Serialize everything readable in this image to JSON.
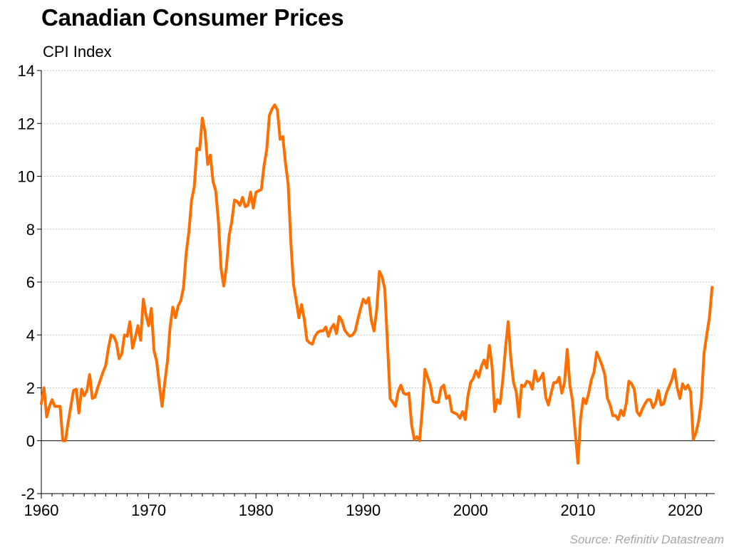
{
  "chart_data": {
    "type": "line",
    "title": "Canadian Consumer Prices",
    "subtitle": "CPI Index",
    "source": "Source: Refinitiv Datastream",
    "xlim": [
      1960,
      2022.75
    ],
    "ylim": [
      -2,
      14
    ],
    "yticks": [
      14,
      12,
      10,
      8,
      6,
      4,
      2,
      0,
      -2
    ],
    "xticks": [
      1960,
      1970,
      1980,
      1990,
      2000,
      2010,
      2020
    ],
    "grid": true,
    "series": [
      {
        "color": "#ff6f00",
        "points": [
          [
            1960.0,
            1.4
          ],
          [
            1960.25,
            2.0
          ],
          [
            1960.5,
            0.9
          ],
          [
            1960.75,
            1.3
          ],
          [
            1961.0,
            1.55
          ],
          [
            1961.25,
            1.3
          ],
          [
            1961.5,
            1.3
          ],
          [
            1961.75,
            1.3
          ],
          [
            1962.0,
            0.0
          ],
          [
            1962.25,
            0.0
          ],
          [
            1962.5,
            0.7
          ],
          [
            1962.75,
            1.3
          ],
          [
            1963.0,
            1.9
          ],
          [
            1963.25,
            1.95
          ],
          [
            1963.5,
            1.05
          ],
          [
            1963.75,
            1.95
          ],
          [
            1964.0,
            1.7
          ],
          [
            1964.25,
            1.9
          ],
          [
            1964.5,
            2.5
          ],
          [
            1964.75,
            1.6
          ],
          [
            1965.0,
            1.65
          ],
          [
            1965.25,
            2.0
          ],
          [
            1965.5,
            2.3
          ],
          [
            1965.75,
            2.6
          ],
          [
            1966.0,
            2.85
          ],
          [
            1966.25,
            3.5
          ],
          [
            1966.5,
            4.0
          ],
          [
            1966.75,
            3.95
          ],
          [
            1967.0,
            3.7
          ],
          [
            1967.25,
            3.1
          ],
          [
            1967.5,
            3.3
          ],
          [
            1967.75,
            4.0
          ],
          [
            1968.0,
            3.95
          ],
          [
            1968.25,
            4.5
          ],
          [
            1968.5,
            3.5
          ],
          [
            1968.75,
            3.9
          ],
          [
            1969.0,
            4.35
          ],
          [
            1969.25,
            3.8
          ],
          [
            1969.5,
            5.35
          ],
          [
            1969.75,
            4.75
          ],
          [
            1970.0,
            4.35
          ],
          [
            1970.25,
            5.0
          ],
          [
            1970.5,
            3.4
          ],
          [
            1970.75,
            3.0
          ],
          [
            1971.0,
            2.1
          ],
          [
            1971.25,
            1.3
          ],
          [
            1971.5,
            2.2
          ],
          [
            1971.75,
            3.0
          ],
          [
            1972.0,
            4.3
          ],
          [
            1972.25,
            5.05
          ],
          [
            1972.5,
            4.65
          ],
          [
            1972.75,
            5.1
          ],
          [
            1973.0,
            5.3
          ],
          [
            1973.25,
            5.8
          ],
          [
            1973.5,
            7.1
          ],
          [
            1973.75,
            7.9
          ],
          [
            1974.0,
            9.1
          ],
          [
            1974.25,
            9.6
          ],
          [
            1974.5,
            11.05
          ],
          [
            1974.75,
            11.0
          ],
          [
            1975.0,
            12.2
          ],
          [
            1975.25,
            11.7
          ],
          [
            1975.5,
            10.45
          ],
          [
            1975.75,
            10.8
          ],
          [
            1976.0,
            9.8
          ],
          [
            1976.25,
            9.45
          ],
          [
            1976.5,
            8.3
          ],
          [
            1976.75,
            6.5
          ],
          [
            1977.0,
            5.85
          ],
          [
            1977.25,
            6.6
          ],
          [
            1977.5,
            7.75
          ],
          [
            1977.75,
            8.3
          ],
          [
            1978.0,
            9.1
          ],
          [
            1978.25,
            9.05
          ],
          [
            1978.5,
            8.9
          ],
          [
            1978.75,
            9.2
          ],
          [
            1979.0,
            8.85
          ],
          [
            1979.25,
            8.9
          ],
          [
            1979.5,
            9.4
          ],
          [
            1979.75,
            8.8
          ],
          [
            1980.0,
            9.4
          ],
          [
            1980.25,
            9.45
          ],
          [
            1980.5,
            9.5
          ],
          [
            1980.75,
            10.4
          ],
          [
            1981.0,
            11.0
          ],
          [
            1981.25,
            12.3
          ],
          [
            1981.5,
            12.55
          ],
          [
            1981.75,
            12.7
          ],
          [
            1982.0,
            12.5
          ],
          [
            1982.25,
            11.4
          ],
          [
            1982.5,
            11.5
          ],
          [
            1982.75,
            10.5
          ],
          [
            1983.0,
            9.7
          ],
          [
            1983.25,
            7.5
          ],
          [
            1983.5,
            5.9
          ],
          [
            1983.75,
            5.3
          ],
          [
            1984.0,
            4.65
          ],
          [
            1984.25,
            5.15
          ],
          [
            1984.5,
            4.6
          ],
          [
            1984.75,
            3.8
          ],
          [
            1985.0,
            3.7
          ],
          [
            1985.25,
            3.65
          ],
          [
            1985.5,
            3.95
          ],
          [
            1985.75,
            4.1
          ],
          [
            1986.0,
            4.15
          ],
          [
            1986.25,
            4.15
          ],
          [
            1986.5,
            4.3
          ],
          [
            1986.75,
            3.95
          ],
          [
            1987.0,
            4.25
          ],
          [
            1987.25,
            4.4
          ],
          [
            1987.5,
            4.05
          ],
          [
            1987.75,
            4.7
          ],
          [
            1988.0,
            4.55
          ],
          [
            1988.25,
            4.2
          ],
          [
            1988.5,
            4.05
          ],
          [
            1988.75,
            3.95
          ],
          [
            1989.0,
            4.0
          ],
          [
            1989.25,
            4.15
          ],
          [
            1989.5,
            4.6
          ],
          [
            1989.75,
            5.0
          ],
          [
            1990.0,
            5.35
          ],
          [
            1990.25,
            5.2
          ],
          [
            1990.5,
            5.4
          ],
          [
            1990.75,
            4.55
          ],
          [
            1991.0,
            4.15
          ],
          [
            1991.25,
            4.95
          ],
          [
            1991.5,
            6.4
          ],
          [
            1991.75,
            6.2
          ],
          [
            1992.0,
            5.75
          ],
          [
            1992.25,
            3.7
          ],
          [
            1992.5,
            1.6
          ],
          [
            1992.75,
            1.45
          ],
          [
            1993.0,
            1.3
          ],
          [
            1993.25,
            1.85
          ],
          [
            1993.5,
            2.1
          ],
          [
            1993.75,
            1.8
          ],
          [
            1994.0,
            1.75
          ],
          [
            1994.25,
            1.8
          ],
          [
            1994.5,
            0.6
          ],
          [
            1994.75,
            0.05
          ],
          [
            1995.0,
            0.15
          ],
          [
            1995.25,
            0.0
          ],
          [
            1995.5,
            1.2
          ],
          [
            1995.75,
            2.7
          ],
          [
            1996.0,
            2.4
          ],
          [
            1996.25,
            2.1
          ],
          [
            1996.5,
            1.5
          ],
          [
            1996.75,
            1.45
          ],
          [
            1997.0,
            1.45
          ],
          [
            1997.25,
            2.0
          ],
          [
            1997.5,
            2.1
          ],
          [
            1997.75,
            1.6
          ],
          [
            1998.0,
            1.7
          ],
          [
            1998.25,
            1.1
          ],
          [
            1998.5,
            1.05
          ],
          [
            1998.75,
            1.0
          ],
          [
            1999.0,
            0.85
          ],
          [
            1999.25,
            1.1
          ],
          [
            1999.5,
            0.8
          ],
          [
            1999.75,
            1.7
          ],
          [
            2000.0,
            2.2
          ],
          [
            2000.25,
            2.35
          ],
          [
            2000.5,
            2.65
          ],
          [
            2000.75,
            2.4
          ],
          [
            2001.0,
            2.8
          ],
          [
            2001.25,
            3.05
          ],
          [
            2001.5,
            2.75
          ],
          [
            2001.75,
            3.6
          ],
          [
            2002.0,
            2.8
          ],
          [
            2002.25,
            1.1
          ],
          [
            2002.5,
            1.55
          ],
          [
            2002.75,
            1.4
          ],
          [
            2003.0,
            2.3
          ],
          [
            2003.25,
            3.5
          ],
          [
            2003.5,
            4.5
          ],
          [
            2003.75,
            3.1
          ],
          [
            2004.0,
            2.2
          ],
          [
            2004.25,
            1.85
          ],
          [
            2004.5,
            0.9
          ],
          [
            2004.75,
            2.1
          ],
          [
            2005.0,
            2.05
          ],
          [
            2005.25,
            2.25
          ],
          [
            2005.5,
            2.2
          ],
          [
            2005.75,
            1.95
          ],
          [
            2006.0,
            2.65
          ],
          [
            2006.25,
            2.25
          ],
          [
            2006.5,
            2.35
          ],
          [
            2006.75,
            2.55
          ],
          [
            2007.0,
            1.65
          ],
          [
            2007.25,
            1.35
          ],
          [
            2007.5,
            1.8
          ],
          [
            2007.75,
            2.2
          ],
          [
            2008.0,
            2.2
          ],
          [
            2008.25,
            2.4
          ],
          [
            2008.5,
            1.8
          ],
          [
            2008.75,
            2.2
          ],
          [
            2009.0,
            3.45
          ],
          [
            2009.25,
            2.1
          ],
          [
            2009.5,
            1.5
          ],
          [
            2009.75,
            0.3
          ],
          [
            2010.0,
            -0.85
          ],
          [
            2010.25,
            0.85
          ],
          [
            2010.5,
            1.6
          ],
          [
            2010.75,
            1.4
          ],
          [
            2011.0,
            1.8
          ],
          [
            2011.25,
            2.3
          ],
          [
            2011.5,
            2.6
          ],
          [
            2011.75,
            3.35
          ],
          [
            2012.0,
            3.1
          ],
          [
            2012.25,
            2.85
          ],
          [
            2012.5,
            2.5
          ],
          [
            2012.75,
            1.6
          ],
          [
            2013.0,
            1.35
          ],
          [
            2013.25,
            0.95
          ],
          [
            2013.5,
            0.95
          ],
          [
            2013.75,
            0.8
          ],
          [
            2014.0,
            1.15
          ],
          [
            2014.25,
            0.95
          ],
          [
            2014.5,
            1.4
          ],
          [
            2014.75,
            2.25
          ],
          [
            2015.0,
            2.15
          ],
          [
            2015.25,
            1.95
          ],
          [
            2015.5,
            1.1
          ],
          [
            2015.75,
            0.95
          ],
          [
            2016.0,
            1.2
          ],
          [
            2016.25,
            1.4
          ],
          [
            2016.5,
            1.55
          ],
          [
            2016.75,
            1.55
          ],
          [
            2017.0,
            1.25
          ],
          [
            2017.25,
            1.45
          ],
          [
            2017.5,
            1.9
          ],
          [
            2017.75,
            1.35
          ],
          [
            2018.0,
            1.4
          ],
          [
            2018.25,
            1.8
          ],
          [
            2018.5,
            2.05
          ],
          [
            2018.75,
            2.3
          ],
          [
            2019.0,
            2.7
          ],
          [
            2019.25,
            2.0
          ],
          [
            2019.5,
            1.6
          ],
          [
            2019.75,
            2.15
          ],
          [
            2020.0,
            1.95
          ],
          [
            2020.25,
            2.1
          ],
          [
            2020.5,
            1.85
          ],
          [
            2020.75,
            0.05
          ],
          [
            2021.0,
            0.3
          ],
          [
            2021.25,
            0.75
          ],
          [
            2021.5,
            1.5
          ],
          [
            2021.75,
            3.3
          ],
          [
            2022.0,
            4.0
          ],
          [
            2022.25,
            4.65
          ],
          [
            2022.5,
            5.8
          ]
        ]
      }
    ]
  }
}
